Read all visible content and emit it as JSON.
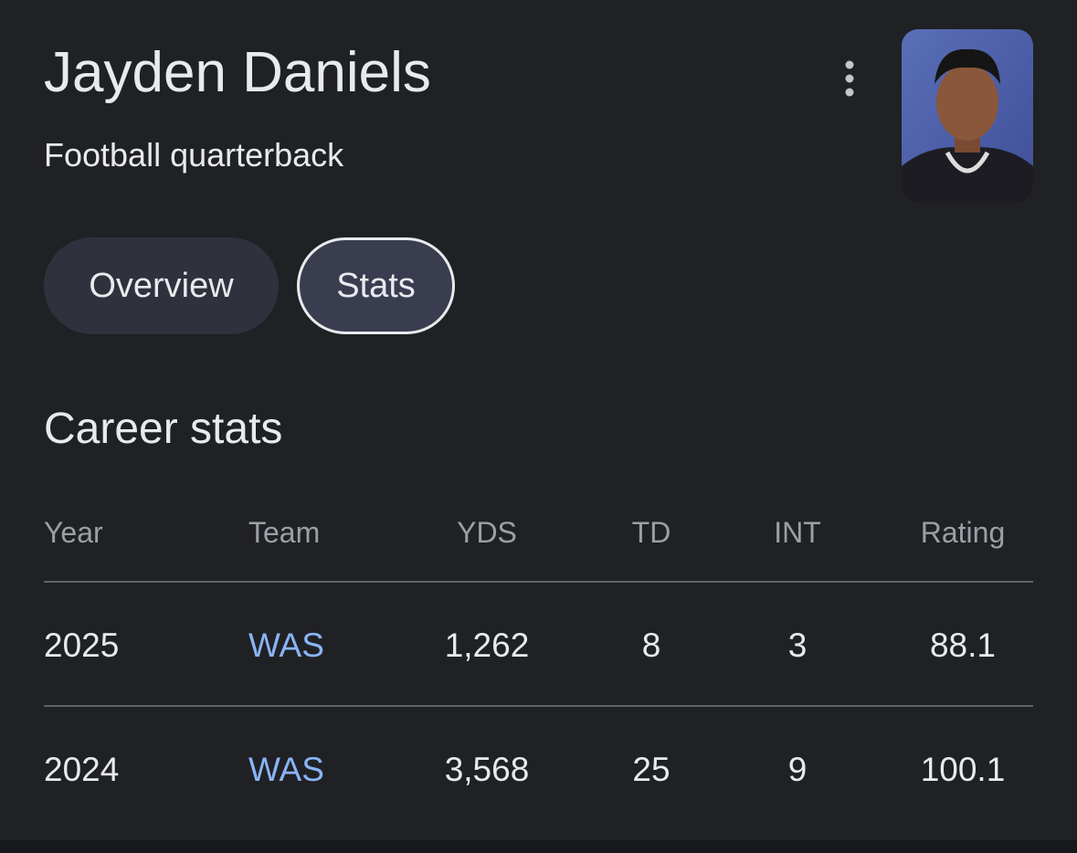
{
  "header": {
    "title": "Jayden Daniels",
    "subtitle": "Football quarterback"
  },
  "tabs": [
    "Overview",
    "Stats"
  ],
  "section": {
    "title": "Career stats"
  },
  "table": {
    "columns": [
      "Year",
      "Team",
      "YDS",
      "TD",
      "INT",
      "Rating"
    ],
    "rows": [
      [
        "2025",
        "WAS",
        "1,262",
        "8",
        "3",
        "88.1"
      ],
      [
        "2024",
        "WAS",
        "3,568",
        "25",
        "9",
        "100.1"
      ]
    ]
  }
}
